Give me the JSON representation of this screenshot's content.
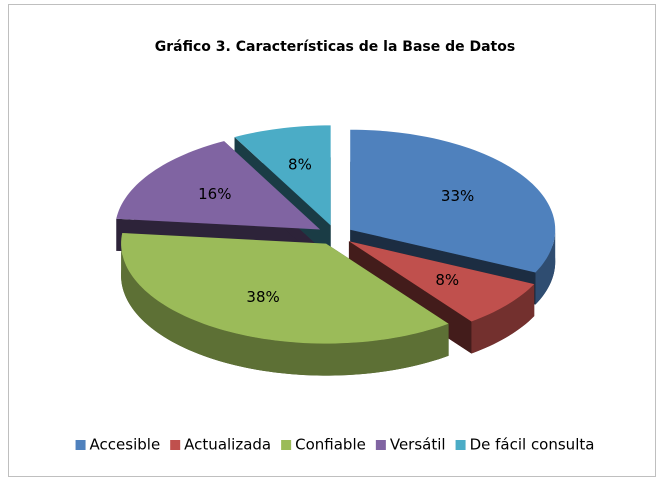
{
  "chart_data": {
    "type": "pie",
    "title": "Gráfico 3. Características de la Base de Datos",
    "categories": [
      "Accesible",
      "Actualizada",
      "Confiable",
      "Versátil",
      "De fácil consulta"
    ],
    "values": [
      33,
      8,
      38,
      16,
      8
    ],
    "value_labels": [
      "33%",
      "8%",
      "38%",
      "16%",
      "8%"
    ],
    "colors": [
      "#4f81bd",
      "#c0504d",
      "#9bbb59",
      "#8064a2",
      "#4bacc6"
    ],
    "legend": "bottom"
  }
}
